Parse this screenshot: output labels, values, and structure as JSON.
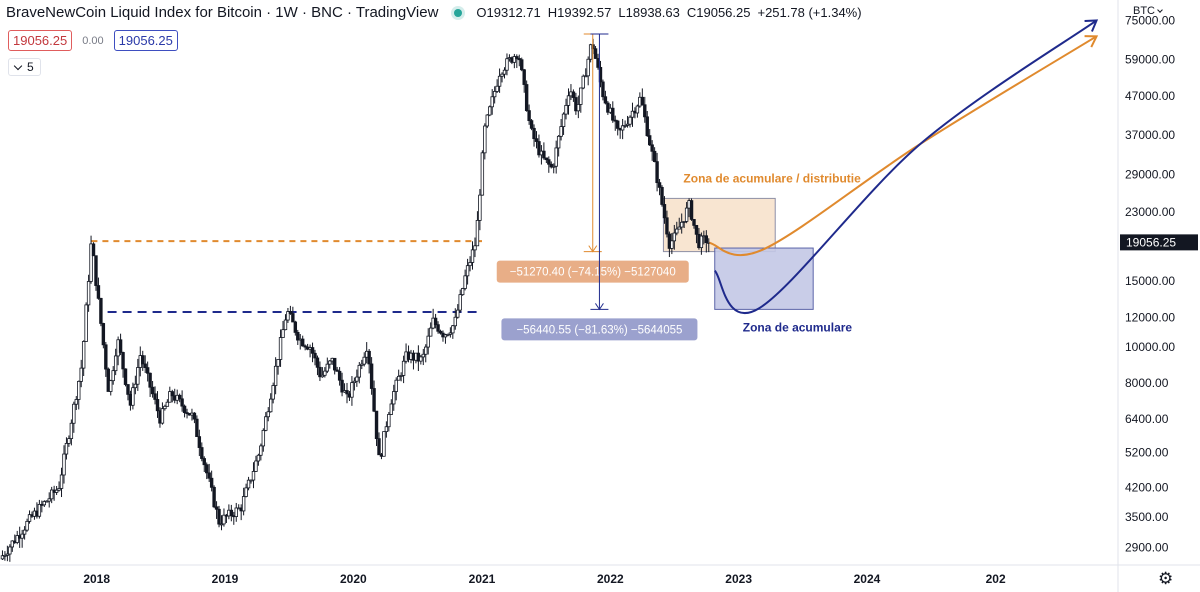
{
  "header": {
    "title": "BraveNewCoin Liquid Index for Bitcoin · 1W · BNC · TradingView",
    "open_label": "O",
    "open": "19312.71",
    "high_label": "H",
    "high": "19392.57",
    "low_label": "L",
    "low": "18938.63",
    "close_label": "C",
    "close": "19056.25",
    "change": "+251.78 (+1.34%)"
  },
  "sub_values": {
    "left_price": "19056.25",
    "spread": "0.00",
    "right_price": "19056.25"
  },
  "indicator": {
    "value": "5"
  },
  "currency": "BTC",
  "colors": {
    "orange": "#e08a2e",
    "navy": "#1f2a8c",
    "candle": "#131722",
    "orange_fill": "#f6dcc1",
    "blue_fill": "#c3c8e6"
  },
  "chart_data": {
    "type": "candlestick",
    "interval": "1W",
    "log_scale": true,
    "ylim": [
      2600,
      80000
    ],
    "x_range": [
      "2017-04-01",
      "2025-12-15"
    ],
    "x_tick_labels": [
      "2018",
      "2019",
      "2020",
      "2021",
      "2022",
      "2023",
      "2024",
      "202"
    ],
    "x_tick_dates": [
      "2018-01-01",
      "2019-01-01",
      "2020-01-01",
      "2021-01-01",
      "2022-01-01",
      "2023-01-01",
      "2024-01-01",
      "2025-01-01"
    ],
    "y_ticks": [
      75000,
      59000,
      47000,
      37000,
      29000,
      23000,
      19056.25,
      15000,
      12000,
      10000,
      8000,
      6400,
      5200,
      4200,
      3500,
      2900
    ],
    "y_tick_labels": [
      "75000.00",
      "59000.00",
      "47000.00",
      "37000.00",
      "29000.00",
      "23000.00",
      "19056.25",
      "15000.00",
      "12000.00",
      "10000.00",
      "8000.00",
      "6400.00",
      "5200.00",
      "4200.00",
      "3500.00",
      "2900.00"
    ],
    "last_price": 19056.25,
    "price_path": [
      [
        "2017-04-01",
        2700
      ],
      [
        "2017-07-01",
        3500
      ],
      [
        "2017-09-15",
        4200
      ],
      [
        "2017-11-20",
        9000
      ],
      [
        "2017-12-17",
        19200
      ],
      [
        "2018-02-05",
        7500
      ],
      [
        "2018-03-01",
        10500
      ],
      [
        "2018-04-07",
        7000
      ],
      [
        "2018-05-05",
        9500
      ],
      [
        "2018-07-01",
        6400
      ],
      [
        "2018-08-01",
        7500
      ],
      [
        "2018-10-01",
        6500
      ],
      [
        "2018-11-15",
        4400
      ],
      [
        "2018-12-15",
        3400
      ],
      [
        "2019-02-15",
        3700
      ],
      [
        "2019-04-08",
        5200
      ],
      [
        "2019-06-26",
        12500
      ],
      [
        "2019-08-01",
        10500
      ],
      [
        "2019-09-01",
        10000
      ],
      [
        "2019-10-01",
        8300
      ],
      [
        "2019-11-01",
        9200
      ],
      [
        "2019-12-15",
        7200
      ],
      [
        "2020-02-10",
        10200
      ],
      [
        "2020-03-15",
        4900
      ],
      [
        "2020-04-15",
        7100
      ],
      [
        "2020-06-01",
        9500
      ],
      [
        "2020-07-15",
        9200
      ],
      [
        "2020-08-15",
        11700
      ],
      [
        "2020-09-15",
        10800
      ],
      [
        "2020-10-15",
        11500
      ],
      [
        "2020-11-15",
        15500
      ],
      [
        "2020-12-15",
        19200
      ],
      [
        "2021-01-08",
        38000
      ],
      [
        "2021-02-21",
        55000
      ],
      [
        "2021-04-14",
        62000
      ],
      [
        "2021-05-19",
        38000
      ],
      [
        "2021-06-22",
        32000
      ],
      [
        "2021-07-20",
        30000
      ],
      [
        "2021-09-07",
        50000
      ],
      [
        "2021-09-28",
        43000
      ],
      [
        "2021-11-10",
        66000
      ],
      [
        "2021-12-10",
        48000
      ],
      [
        "2022-01-24",
        37000
      ],
      [
        "2022-03-28",
        46500
      ],
      [
        "2022-05-12",
        29000
      ],
      [
        "2022-06-18",
        19000
      ],
      [
        "2022-07-01",
        19500
      ],
      [
        "2022-08-14",
        24000
      ],
      [
        "2022-09-07",
        19000
      ],
      [
        "2022-09-30",
        19400
      ],
      [
        "2022-10-10",
        19056.25
      ]
    ],
    "horizontal_lines": [
      {
        "price": 19200,
        "from": "2017-12-17",
        "to": "2021-01-01",
        "color": "#e08a2e"
      },
      {
        "price": 12400,
        "from": "2018-02-01",
        "to": "2021-01-01",
        "color": "#1f2a8c"
      }
    ],
    "measures": [
      {
        "from_price": 69000,
        "to_price": 18000,
        "date": "2021-11-12",
        "label": "−51270.40 (−74.15%) −5127040",
        "color": "#e08a2e"
      },
      {
        "from_price": 69000,
        "to_price": 12600,
        "date": "2021-12-01",
        "label": "−56440.55 (−81.63%) −5644055",
        "color": "#1f2a8c"
      }
    ],
    "zones": [
      {
        "label": "Zona de acumulare / distributie",
        "x0": "2022-06-01",
        "x1": "2023-04-15",
        "y0": 18000,
        "y1": 25000,
        "color": "#e08a2e"
      },
      {
        "label": "Zona de acumulare",
        "x0": "2022-10-25",
        "x1": "2023-08-01",
        "y0": 12600,
        "y1": 18400,
        "color": "#1f2a8c"
      }
    ],
    "projections": [
      {
        "color": "#e08a2e",
        "points": [
          [
            "2022-10-10",
            19000
          ],
          [
            "2023-03-15",
            18300
          ],
          [
            "2024-06-01",
            35000
          ],
          [
            "2025-10-15",
            68000
          ]
        ]
      },
      {
        "color": "#1f2a8c",
        "points": [
          [
            "2022-10-25",
            16000
          ],
          [
            "2023-03-01",
            12700
          ],
          [
            "2024-06-01",
            35000
          ],
          [
            "2025-10-15",
            75000
          ]
        ]
      }
    ]
  }
}
